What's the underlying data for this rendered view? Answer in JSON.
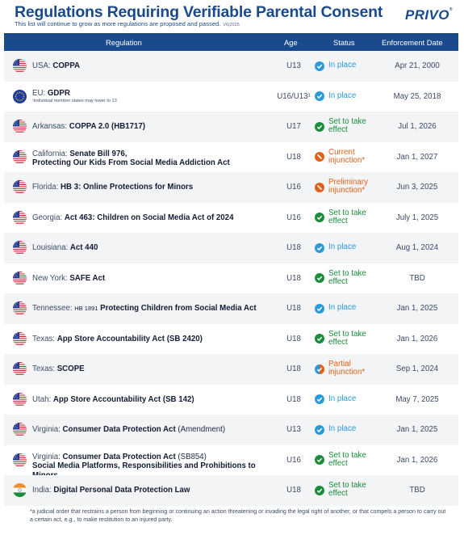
{
  "header": {
    "title": "Regulations Requiring Verifiable Parental Consent",
    "subtitle": "This list will continue to grow as more regulations are proposed and passed.",
    "version": "V6|2025",
    "brand": "PRIVO",
    "brand_mark": "®"
  },
  "columns": {
    "regulation": "Regulation",
    "age": "Age",
    "status": "Status",
    "enforcement": "Enforcement Date"
  },
  "rows": [
    {
      "flag": "us",
      "state": "USA:",
      "name": "COPPA",
      "age": "U13",
      "status": "In place",
      "status_type": "inplace",
      "date": "Apr 21, 2000"
    },
    {
      "flag": "eu",
      "state": "EU:",
      "name": "GDPR",
      "note": "¹individual member states may lower to 13",
      "age": "U16/U13¹",
      "status": "In place",
      "status_type": "inplace",
      "date": "May 25, 2018"
    },
    {
      "flag": "us",
      "state": "Arkansas:",
      "name": "COPPA 2.0 (HB1717)",
      "age": "U17",
      "status": "Set to take effect",
      "status_type": "set",
      "date": "Jul 1, 2026"
    },
    {
      "flag": "us",
      "state": "California:",
      "name": "Senate Bill 976,",
      "name2": "Protecting Our Kids From Social Media Addiction Act",
      "age": "U18",
      "status": "Current injunction*",
      "status_type": "inj",
      "date": "Jan 1, 2027"
    },
    {
      "flag": "us",
      "state": "Florida:",
      "name": "HB 3: Online Protections for Minors",
      "age": "U16",
      "status": "Preliminary injunction*",
      "status_type": "inj",
      "date": "Jun 3, 2025"
    },
    {
      "flag": "us",
      "state": "Georgia:",
      "name": "Act 463: Children on Social Media Act of 2024",
      "age": "U16",
      "status": "Set to take effect",
      "status_type": "set",
      "date": "July 1, 2025"
    },
    {
      "flag": "us",
      "state": "Louisiana:",
      "name": "Act 440",
      "age": "U18",
      "status": "In place",
      "status_type": "inplace",
      "date": "Aug 1, 2024"
    },
    {
      "flag": "us",
      "state": "New York:",
      "name": "SAFE Act",
      "age": "U18",
      "status": "Set to take effect",
      "status_type": "set",
      "date": "TBD"
    },
    {
      "flag": "us",
      "state": "Tennessee:",
      "small": "HB 1891",
      "name": "Protecting Children from Social Media Act",
      "age": "U18",
      "status": "In place",
      "status_type": "inplace",
      "date": "Jan 1, 2025"
    },
    {
      "flag": "us",
      "state": "Texas:",
      "name": "App Store Accountability Act (SB 2420)",
      "age": "U18",
      "status": "Set to take effect",
      "status_type": "set",
      "date": "Jan 1, 2026"
    },
    {
      "flag": "us",
      "state": "Texas:",
      "name": "SCOPE",
      "age": "U18",
      "status": "Partial injunction*",
      "status_type": "partial",
      "date": "Sep 1, 2024"
    },
    {
      "flag": "us",
      "state": "Utah:",
      "name": "App Store Accountability Act (SB 142)",
      "age": "U18",
      "status": "In place",
      "status_type": "inplace",
      "date": "May 7, 2025"
    },
    {
      "flag": "us",
      "state": "Virginia:",
      "name": "Consumer Data Protection Act",
      "plain": "(Amendment)",
      "age": "U13",
      "status": "In place",
      "status_type": "inplace",
      "date": "Jan 1, 2025"
    },
    {
      "flag": "us",
      "state": "Virginia:",
      "name": "Consumer Data Protection Act",
      "plain": "(SB854)",
      "name2": "Social Media Platforms, Responsibilities and Prohibitions to Minors",
      "age": "U16",
      "status": "Set to take effect",
      "status_type": "set",
      "date": "Jan 1, 2026"
    },
    {
      "flag": "in",
      "state": "India:",
      "name": "Digital Personal Data Protection Law",
      "age": "U18",
      "status": "Set to take effect",
      "status_type": "set",
      "date": "TBD"
    }
  ],
  "footnote": "*a judicial order that restrains a person from beginning or continuing an action threatening or invading the legal right of another, or that compels a person to carry out a certain act, e.g., to make restitution to an injured party.",
  "icons": {
    "inplace": "checkmark-icon",
    "set": "check-circle-icon",
    "inj": "prohibited-icon",
    "partial": "partial-check-icon"
  },
  "colors": {
    "header_bg": "#1a4a8c",
    "in_place": "#2a9ad8",
    "set_to_take_effect": "#1a8c3a",
    "injunction": "#e0621a"
  }
}
